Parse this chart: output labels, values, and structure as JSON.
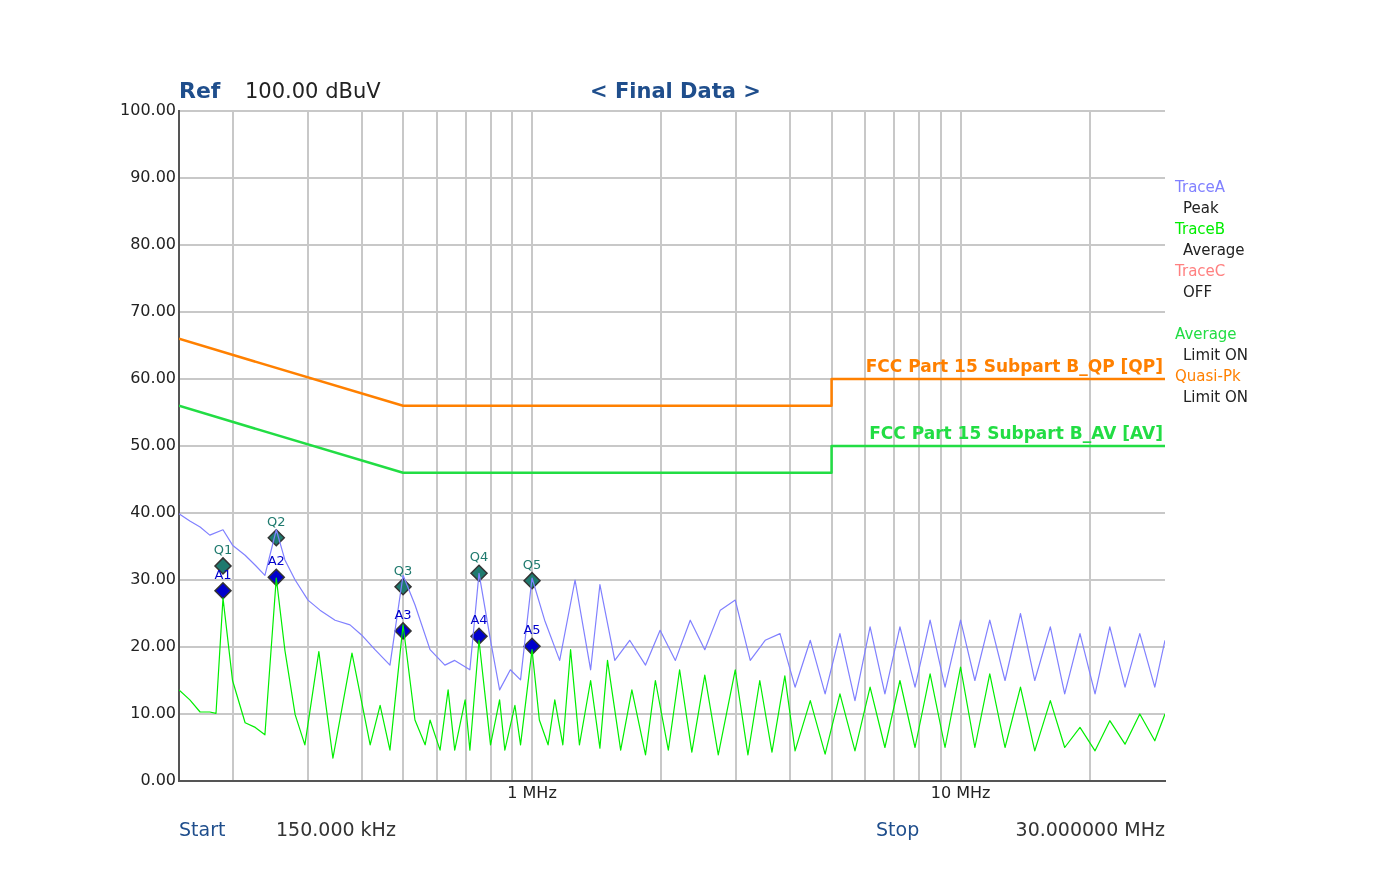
{
  "chart_data": {
    "type": "line",
    "title": "< Final Data >",
    "xlim": [
      0.15,
      30
    ],
    "ylim": [
      0,
      100
    ],
    "log": "x",
    "grid": true,
    "legend": "right",
    "xticks": [
      {
        "value": 0.2,
        "label": null
      },
      {
        "value": 0.3,
        "label": null
      },
      {
        "value": 0.4,
        "label": null
      },
      {
        "value": 0.5,
        "label": null
      },
      {
        "value": 0.6,
        "label": null
      },
      {
        "value": 0.7,
        "label": null
      },
      {
        "value": 0.8,
        "label": null
      },
      {
        "value": 0.9,
        "label": null
      },
      {
        "value": 1,
        "label": "1 MHz"
      },
      {
        "value": 2,
        "label": null
      },
      {
        "value": 3,
        "label": null
      },
      {
        "value": 4,
        "label": null
      },
      {
        "value": 5,
        "label": null
      },
      {
        "value": 6,
        "label": null
      },
      {
        "value": 7,
        "label": null
      },
      {
        "value": 8,
        "label": null
      },
      {
        "value": 9,
        "label": null
      },
      {
        "value": 10,
        "label": "10 MHz"
      },
      {
        "value": 20,
        "label": null
      }
    ],
    "yticks": [
      {
        "value": 0,
        "label": "0.00"
      },
      {
        "value": 10,
        "label": "10.00"
      },
      {
        "value": 20,
        "label": "20.00"
      },
      {
        "value": 30,
        "label": "30.00"
      },
      {
        "value": 40,
        "label": "40.00"
      },
      {
        "value": 50,
        "label": "50.00"
      },
      {
        "value": 60,
        "label": "60.00"
      },
      {
        "value": 70,
        "label": "70.00"
      },
      {
        "value": 80,
        "label": "80.00"
      },
      {
        "value": 90,
        "label": "90.00"
      },
      {
        "value": 100,
        "label": "100.00"
      }
    ],
    "series": [
      {
        "name": "TraceA",
        "color": "#8080ff",
        "marker": "none",
        "x": [
          0.15,
          0.159,
          0.168,
          0.177,
          0.19,
          0.2,
          0.214,
          0.226,
          0.238,
          0.253,
          0.265,
          0.28,
          0.3,
          0.32,
          0.347,
          0.376,
          0.4,
          0.43,
          0.466,
          0.5,
          0.533,
          0.578,
          0.626,
          0.66,
          0.716,
          0.752,
          0.8,
          0.84,
          0.89,
          0.94,
          1.0,
          1.07,
          1.16,
          1.26,
          1.37,
          1.44,
          1.56,
          1.69,
          1.84,
          1.99,
          2.16,
          2.34,
          2.53,
          2.75,
          2.98,
          3.23,
          3.5,
          3.79,
          4.11,
          4.46,
          4.83,
          5.23,
          5.67,
          6.15,
          6.66,
          7.22,
          7.83,
          8.49,
          9.2,
          10,
          10.8,
          11.7,
          12.7,
          13.8,
          14.9,
          16.2,
          17.5,
          19,
          20.6,
          22.3,
          24.2,
          26.2,
          28.4,
          30
        ],
        "values": [
          39.9,
          38.8,
          37.9,
          36.7,
          37.5,
          35.2,
          33.7,
          32.2,
          30.7,
          37.5,
          33,
          30,
          27,
          25.5,
          24,
          23.3,
          21.8,
          19.6,
          17.3,
          30.7,
          26.3,
          19.6,
          17.3,
          18,
          16.6,
          31,
          21,
          13.6,
          16.6,
          15.1,
          30.3,
          24,
          18,
          30,
          16.6,
          29.3,
          18,
          21,
          17.3,
          22.5,
          18,
          24,
          19.6,
          25.5,
          27,
          18,
          21,
          22,
          14,
          21,
          13,
          22,
          12,
          23,
          13,
          23,
          14,
          24,
          14,
          24,
          15,
          24,
          15,
          25,
          15,
          23,
          13,
          22,
          13,
          23,
          14,
          22,
          14,
          21
        ]
      },
      {
        "name": "TraceB",
        "color": "#00ee00",
        "marker": "none",
        "x": [
          0.15,
          0.159,
          0.168,
          0.177,
          0.183,
          0.19,
          0.2,
          0.214,
          0.226,
          0.238,
          0.253,
          0.265,
          0.28,
          0.295,
          0.318,
          0.343,
          0.38,
          0.419,
          0.442,
          0.466,
          0.5,
          0.533,
          0.563,
          0.578,
          0.61,
          0.637,
          0.66,
          0.698,
          0.716,
          0.752,
          0.8,
          0.84,
          0.864,
          0.912,
          0.94,
          1.0,
          1.04,
          1.09,
          1.13,
          1.18,
          1.23,
          1.29,
          1.37,
          1.44,
          1.5,
          1.61,
          1.71,
          1.84,
          1.94,
          2.08,
          2.21,
          2.36,
          2.53,
          2.72,
          2.98,
          3.19,
          3.4,
          3.63,
          3.89,
          4.11,
          4.46,
          4.83,
          5.23,
          5.67,
          6.15,
          6.66,
          7.22,
          7.83,
          8.49,
          9.2,
          10,
          10.8,
          11.7,
          12.7,
          13.8,
          14.9,
          16.2,
          17.5,
          19,
          20.6,
          22.3,
          24.2,
          26.2,
          28.4,
          30
        ],
        "values": [
          13.6,
          12.1,
          10.3,
          10.3,
          10.1,
          27.3,
          15,
          8.7,
          8,
          6.9,
          30.3,
          19.5,
          9.9,
          5.4,
          19.3,
          3.4,
          19.1,
          5.4,
          11.3,
          4.6,
          23.3,
          9.1,
          5.4,
          9.1,
          4.6,
          13.6,
          4.6,
          12.1,
          4.6,
          21,
          5.4,
          12.1,
          4.6,
          11.3,
          5.4,
          19.6,
          9.1,
          5.4,
          12.1,
          5.4,
          19.6,
          5.4,
          15,
          4.9,
          18,
          4.6,
          13.6,
          3.9,
          15,
          4.6,
          16.6,
          4.3,
          15.8,
          3.9,
          16.6,
          3.9,
          15,
          4.3,
          15.7,
          4.5,
          12,
          4,
          13,
          4.5,
          14,
          5,
          15,
          5,
          16,
          5,
          17,
          5,
          16,
          5,
          14,
          4.5,
          12,
          5,
          8,
          4.5,
          9,
          5.5,
          10,
          6,
          10
        ]
      },
      {
        "name": "FCC Part 15 Subpart B_QP [QP]",
        "color": "#ff8000",
        "marker": "none",
        "x": [
          0.15,
          0.5,
          5,
          5,
          30
        ],
        "values": [
          66,
          56,
          56,
          60,
          60
        ]
      },
      {
        "name": "FCC Part 15 Subpart B_AV [AV]",
        "color": "#22dd44",
        "marker": "none",
        "x": [
          0.15,
          0.5,
          5,
          5,
          30
        ],
        "values": [
          56,
          46,
          46,
          50,
          50
        ]
      },
      {
        "color": "#1f7a6e",
        "type": "scatter",
        "marker": "diamond",
        "x": [
          0.19,
          0.253,
          0.5,
          0.752,
          1.0
        ],
        "values": [
          32.1,
          36.3,
          29.0,
          31.0,
          29.9
        ]
      },
      {
        "color": "#0000cc",
        "type": "scatter",
        "marker": "diamond",
        "x": [
          0.19,
          0.253,
          0.5,
          0.752,
          1.0
        ],
        "values": [
          28.4,
          30.4,
          22.4,
          21.6,
          20.1
        ]
      }
    ],
    "annotations": [
      "Ref",
      "100.00 dBuV",
      "Peak",
      "Average",
      "TraceC",
      "OFF",
      "Average",
      "Limit ON",
      "Quasi-Pk",
      "Limit ON",
      "Start",
      "150.000 kHz",
      "Stop",
      "30.000000 MHz",
      {
        "text": "Q1",
        "x": 0.19,
        "y": 32.1
      },
      {
        "text": "Q2",
        "x": 0.253,
        "y": 36.3
      },
      {
        "text": "Q3",
        "x": 0.5,
        "y": 29.0
      },
      {
        "text": "Q4",
        "x": 0.752,
        "y": 31.0
      },
      {
        "text": "Q5",
        "x": 1.0,
        "y": 29.9
      },
      {
        "text": "A1",
        "x": 0.19,
        "y": 28.4
      },
      {
        "text": "A2",
        "x": 0.253,
        "y": 30.4
      },
      {
        "text": "A3",
        "x": 0.5,
        "y": 22.4
      },
      {
        "text": "A4",
        "x": 0.752,
        "y": 21.6
      },
      {
        "text": "A5",
        "x": 1.0,
        "y": 20.1
      }
    ]
  }
}
